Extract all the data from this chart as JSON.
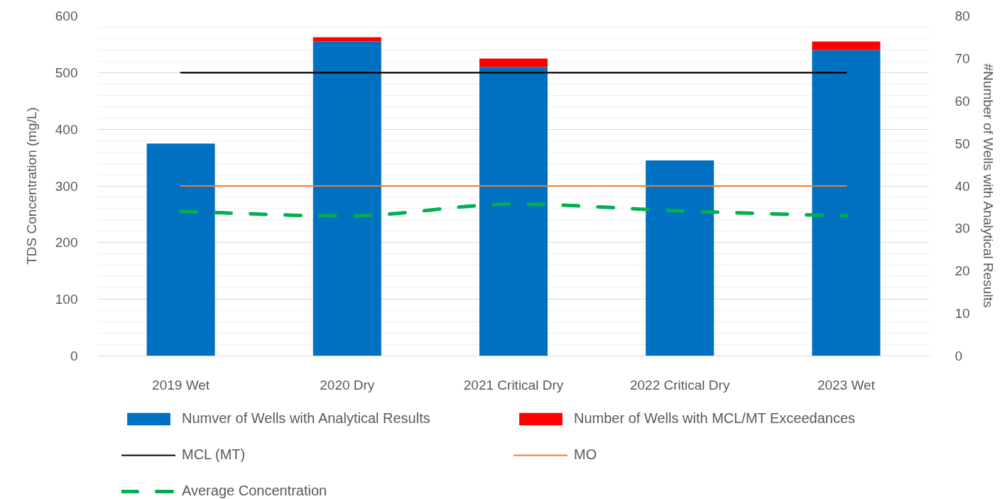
{
  "chart_data": {
    "type": "bar",
    "categories": [
      "2019 Wet",
      "2020 Dry",
      "2021 Critical Dry",
      "2022 Critical Dry",
      "2023 Wet"
    ],
    "ylabel": "TDS Concentration (mg/L)",
    "y2label": "#Number of Wells with Analytical Results",
    "ylim": [
      0,
      600
    ],
    "yticks": [
      0,
      {
        "value": 20,
        "label": null
      },
      {
        "value": 40,
        "label": null
      },
      {
        "value": 60,
        "label": null
      },
      {
        "value": 80,
        "label": null
      },
      100,
      {
        "value": 120,
        "label": null
      },
      {
        "value": 140,
        "label": null
      },
      {
        "value": 160,
        "label": null
      },
      {
        "value": 180,
        "label": null
      },
      200,
      {
        "value": 220,
        "label": null
      },
      {
        "value": 240,
        "label": null
      },
      {
        "value": 260,
        "label": null
      },
      {
        "value": 280,
        "label": null
      },
      300,
      {
        "value": 320,
        "label": null
      },
      {
        "value": 340,
        "label": null
      },
      {
        "value": 360,
        "label": null
      },
      {
        "value": 380,
        "label": null
      },
      400,
      {
        "value": 420,
        "label": null
      },
      {
        "value": 440,
        "label": null
      },
      {
        "value": 460,
        "label": null
      },
      {
        "value": 480,
        "label": null
      },
      500,
      {
        "value": 520,
        "label": null
      },
      {
        "value": 540,
        "label": null
      },
      {
        "value": 560,
        "label": null
      },
      {
        "value": 580,
        "label": null
      },
      600
    ],
    "y2lim": [
      0,
      80
    ],
    "y2ticks": [
      0,
      10,
      20,
      30,
      40,
      50,
      60,
      70,
      80
    ],
    "stacked": true,
    "grid": "y",
    "legend": "bottom",
    "series": [
      {
        "name": "Numver of Wells with Analytical Results",
        "axis": "y2",
        "color": "#0070c0",
        "values": [
          50,
          74,
          68,
          46,
          72
        ]
      },
      {
        "name": "Number of Wells with MCL/MT Exceedances",
        "axis": "y2",
        "color": "#ff0000",
        "values": [
          null,
          1,
          2,
          null,
          2
        ]
      },
      {
        "name": "MCL (MT)",
        "type": "line",
        "color": "#000000",
        "values": [
          500,
          500,
          500,
          500,
          500
        ]
      },
      {
        "name": "MO",
        "type": "line",
        "color": "#ed7d31",
        "values": [
          300,
          300,
          300,
          300,
          300
        ]
      },
      {
        "name": "Average Concentration",
        "type": "line",
        "color": "#00b050",
        "line_style": "dashed",
        "values": [
          255,
          247,
          268,
          256,
          247
        ]
      }
    ]
  }
}
